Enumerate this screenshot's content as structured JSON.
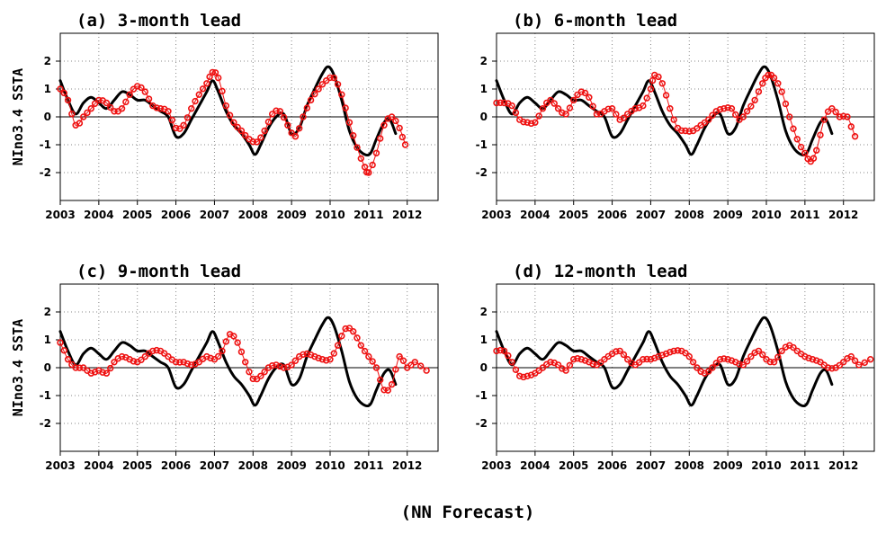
{
  "figure": {
    "caption": "(NN Forecast)",
    "ylabel": "NIno3.4 SSTA"
  },
  "colors": {
    "observed": "#000000",
    "forecast": "#ee1111",
    "grid": "#888888"
  },
  "chart_data": [
    {
      "type": "line",
      "title": "(a) 3-month lead",
      "xlabel": "",
      "ylabel": "NIno3.4 SSTA",
      "xlim": [
        2003,
        2012.8
      ],
      "ylim": [
        -3,
        3
      ],
      "xticks": [
        "2003",
        "2004",
        "2005",
        "2006",
        "2007",
        "2008",
        "2009",
        "2010",
        "2011",
        "2012"
      ],
      "yticks": [
        "-2",
        "-1",
        "0",
        "1",
        "2"
      ],
      "grid": true,
      "series": [
        {
          "style": "solid-black",
          "x": [
            2003.0,
            2003.2,
            2003.4,
            2003.6,
            2003.8,
            2004.0,
            2004.2,
            2004.4,
            2004.6,
            2004.8,
            2005.0,
            2005.2,
            2005.4,
            2005.6,
            2005.8,
            2006.0,
            2006.2,
            2006.4,
            2006.6,
            2006.8,
            2006.95,
            2007.1,
            2007.3,
            2007.5,
            2007.7,
            2007.9,
            2008.05,
            2008.2,
            2008.4,
            2008.6,
            2008.8,
            2009.0,
            2009.2,
            2009.4,
            2009.6,
            2009.8,
            2009.95,
            2010.1,
            2010.3,
            2010.5,
            2010.7,
            2010.9,
            2011.05,
            2011.2,
            2011.4,
            2011.55,
            2011.7
          ],
          "y": [
            1.3,
            0.6,
            0.1,
            0.5,
            0.7,
            0.5,
            0.3,
            0.6,
            0.9,
            0.8,
            0.6,
            0.6,
            0.4,
            0.2,
            0.0,
            -0.7,
            -0.6,
            -0.1,
            0.4,
            0.9,
            1.3,
            0.9,
            0.2,
            -0.3,
            -0.6,
            -1.0,
            -1.35,
            -1.0,
            -0.4,
            0.0,
            0.1,
            -0.6,
            -0.4,
            0.4,
            1.0,
            1.55,
            1.8,
            1.5,
            0.6,
            -0.5,
            -1.1,
            -1.35,
            -1.3,
            -0.8,
            -0.2,
            -0.1,
            -0.6
          ]
        },
        {
          "style": "red-circles",
          "x": [
            2003.0,
            2003.2,
            2003.4,
            2003.6,
            2003.8,
            2004.0,
            2004.2,
            2004.4,
            2004.6,
            2004.8,
            2005.0,
            2005.2,
            2005.4,
            2005.6,
            2005.8,
            2006.0,
            2006.2,
            2006.4,
            2006.6,
            2006.8,
            2006.95,
            2007.1,
            2007.3,
            2007.5,
            2007.7,
            2007.9,
            2008.1,
            2008.3,
            2008.5,
            2008.7,
            2008.9,
            2009.1,
            2009.3,
            2009.5,
            2009.7,
            2009.9,
            2010.1,
            2010.3,
            2010.5,
            2010.7,
            2010.9,
            2011.0,
            2011.2,
            2011.4,
            2011.6,
            2011.8,
            2011.95
          ],
          "y": [
            1.0,
            0.6,
            -0.3,
            0.0,
            0.3,
            0.6,
            0.5,
            0.2,
            0.3,
            0.8,
            1.1,
            0.9,
            0.4,
            0.3,
            0.2,
            -0.4,
            -0.3,
            0.3,
            0.8,
            1.2,
            1.6,
            1.4,
            0.4,
            -0.2,
            -0.5,
            -0.8,
            -0.9,
            -0.5,
            0.1,
            0.2,
            -0.3,
            -0.7,
            0.0,
            0.6,
            1.0,
            1.3,
            1.4,
            0.8,
            -0.2,
            -1.1,
            -1.8,
            -2.0,
            -1.3,
            -0.3,
            0.0,
            -0.4,
            -1.0
          ]
        }
      ]
    },
    {
      "type": "line",
      "title": "(b) 6-month lead",
      "xlabel": "",
      "ylabel": "",
      "xlim": [
        2003,
        2012.8
      ],
      "ylim": [
        -3,
        3
      ],
      "xticks": [
        "2003",
        "2004",
        "2005",
        "2006",
        "2007",
        "2008",
        "2009",
        "2010",
        "2011",
        "2012"
      ],
      "yticks": [
        "-2",
        "-1",
        "0",
        "1",
        "2"
      ],
      "grid": true,
      "series": [
        {
          "style": "solid-black",
          "same_as": "observed"
        },
        {
          "style": "red-circles",
          "x": [
            2003.0,
            2003.2,
            2003.4,
            2003.6,
            2003.8,
            2004.0,
            2004.2,
            2004.4,
            2004.6,
            2004.8,
            2005.0,
            2005.2,
            2005.4,
            2005.6,
            2005.8,
            2006.0,
            2006.2,
            2006.4,
            2006.6,
            2006.8,
            2007.0,
            2007.1,
            2007.3,
            2007.5,
            2007.7,
            2007.9,
            2008.1,
            2008.3,
            2008.5,
            2008.7,
            2008.9,
            2009.1,
            2009.3,
            2009.5,
            2009.7,
            2009.9,
            2010.05,
            2010.2,
            2010.4,
            2010.6,
            2010.8,
            2011.0,
            2011.15,
            2011.3,
            2011.5,
            2011.7,
            2011.9,
            2012.1,
            2012.3
          ],
          "y": [
            0.5,
            0.5,
            0.4,
            -0.1,
            -0.2,
            -0.2,
            0.3,
            0.6,
            0.3,
            0.1,
            0.6,
            0.9,
            0.7,
            0.1,
            0.2,
            0.3,
            -0.1,
            0.1,
            0.3,
            0.4,
            1.0,
            1.5,
            1.2,
            0.3,
            -0.4,
            -0.5,
            -0.5,
            -0.3,
            -0.1,
            0.2,
            0.3,
            0.3,
            -0.1,
            0.2,
            0.6,
            1.2,
            1.5,
            1.4,
            0.9,
            0.0,
            -0.8,
            -1.3,
            -1.6,
            -1.2,
            -0.1,
            0.3,
            0.0,
            0.0,
            -0.7
          ]
        }
      ]
    },
    {
      "type": "line",
      "title": "(c) 9-month lead",
      "xlabel": "",
      "ylabel": "NIno3.4 SSTA",
      "xlim": [
        2003,
        2012.8
      ],
      "ylim": [
        -3,
        3
      ],
      "xticks": [
        "2003",
        "2004",
        "2005",
        "2006",
        "2007",
        "2008",
        "2009",
        "2010",
        "2011",
        "2012"
      ],
      "yticks": [
        "-2",
        "-1",
        "0",
        "1",
        "2"
      ],
      "grid": true,
      "series": [
        {
          "style": "solid-black",
          "same_as": "observed"
        },
        {
          "style": "red-circles",
          "x": [
            2003.0,
            2003.2,
            2003.4,
            2003.6,
            2003.8,
            2004.0,
            2004.2,
            2004.4,
            2004.6,
            2004.8,
            2005.0,
            2005.2,
            2005.4,
            2005.6,
            2005.8,
            2006.0,
            2006.2,
            2006.4,
            2006.6,
            2006.8,
            2007.0,
            2007.2,
            2007.4,
            2007.6,
            2007.8,
            2008.0,
            2008.2,
            2008.4,
            2008.6,
            2008.8,
            2009.0,
            2009.2,
            2009.4,
            2009.6,
            2009.8,
            2010.0,
            2010.2,
            2010.4,
            2010.6,
            2010.8,
            2011.0,
            2011.2,
            2011.4,
            2011.6,
            2011.8,
            2012.0,
            2012.2,
            2012.5
          ],
          "y": [
            0.9,
            0.3,
            0.0,
            0.0,
            -0.2,
            -0.1,
            -0.2,
            0.2,
            0.4,
            0.3,
            0.2,
            0.4,
            0.6,
            0.6,
            0.4,
            0.2,
            0.2,
            0.1,
            0.2,
            0.4,
            0.3,
            0.6,
            1.2,
            0.9,
            0.2,
            -0.4,
            -0.3,
            0.0,
            0.1,
            0.0,
            0.1,
            0.4,
            0.5,
            0.4,
            0.3,
            0.3,
            0.8,
            1.4,
            1.3,
            0.8,
            0.4,
            0.0,
            -0.8,
            -0.6,
            0.4,
            0.0,
            0.2,
            -0.1
          ]
        }
      ]
    },
    {
      "type": "line",
      "title": "(d) 12-month lead",
      "xlabel": "",
      "ylabel": "",
      "xlim": [
        2003,
        2012.8
      ],
      "ylim": [
        -3,
        3
      ],
      "xticks": [
        "2003",
        "2004",
        "2005",
        "2006",
        "2007",
        "2008",
        "2009",
        "2010",
        "2011",
        "2012"
      ],
      "yticks": [
        "-2",
        "-1",
        "0",
        "1",
        "2"
      ],
      "grid": true,
      "series": [
        {
          "style": "solid-black",
          "same_as": "observed"
        },
        {
          "style": "red-circles",
          "x": [
            2003.0,
            2003.2,
            2003.4,
            2003.6,
            2003.8,
            2004.0,
            2004.2,
            2004.4,
            2004.6,
            2004.8,
            2005.0,
            2005.2,
            2005.4,
            2005.6,
            2005.8,
            2006.0,
            2006.2,
            2006.4,
            2006.6,
            2006.8,
            2007.0,
            2007.2,
            2007.4,
            2007.6,
            2007.8,
            2008.0,
            2008.2,
            2008.4,
            2008.6,
            2008.8,
            2009.0,
            2009.2,
            2009.4,
            2009.6,
            2009.8,
            2010.0,
            2010.2,
            2010.4,
            2010.6,
            2010.8,
            2011.0,
            2011.2,
            2011.4,
            2011.6,
            2011.8,
            2012.0,
            2012.2,
            2012.4,
            2012.7
          ],
          "y": [
            0.6,
            0.6,
            0.2,
            -0.3,
            -0.3,
            -0.2,
            0.0,
            0.2,
            0.1,
            -0.1,
            0.3,
            0.3,
            0.2,
            0.1,
            0.3,
            0.5,
            0.6,
            0.3,
            0.1,
            0.3,
            0.3,
            0.4,
            0.5,
            0.6,
            0.6,
            0.4,
            0.0,
            -0.2,
            0.0,
            0.3,
            0.3,
            0.2,
            0.1,
            0.4,
            0.6,
            0.3,
            0.2,
            0.6,
            0.8,
            0.6,
            0.4,
            0.3,
            0.2,
            0.0,
            0.0,
            0.2,
            0.4,
            0.1,
            0.3
          ]
        }
      ]
    }
  ]
}
